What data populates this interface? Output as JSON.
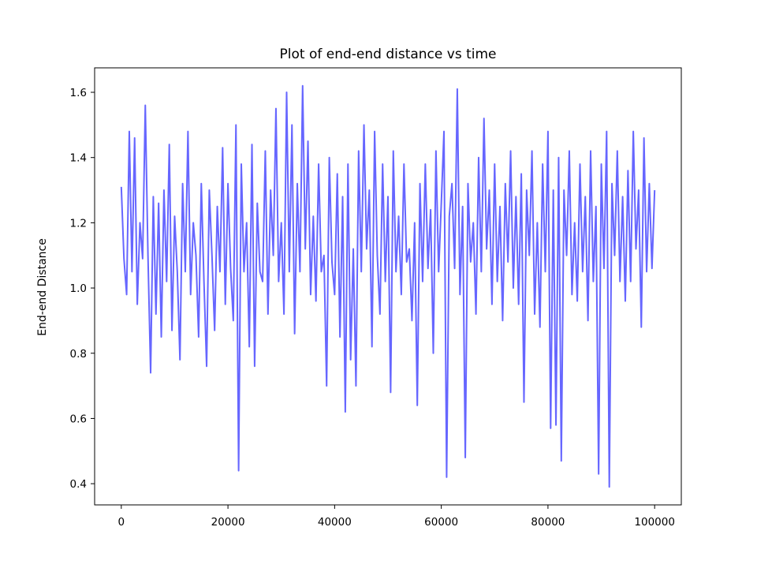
{
  "chart_data": {
    "type": "line",
    "title": "Plot of end-end distance vs time",
    "xlabel": "",
    "ylabel": "End-end Distance",
    "xlim": [
      -5000,
      105000
    ],
    "ylim": [
      0.335,
      1.675
    ],
    "xticks": [
      0,
      20000,
      40000,
      60000,
      80000,
      100000
    ],
    "xtick_labels": [
      "0",
      "20000",
      "40000",
      "60000",
      "80000",
      "100000"
    ],
    "yticks": [
      0.4,
      0.6,
      0.8,
      1.0,
      1.2,
      1.4,
      1.6
    ],
    "ytick_labels": [
      "0.4",
      "0.6",
      "0.8",
      "1.0",
      "1.2",
      "1.4",
      "1.6"
    ],
    "grid": false,
    "series": [
      {
        "color": "#6666ff",
        "x": [
          0,
          500,
          1000,
          1500,
          2000,
          2500,
          3000,
          3500,
          4000,
          4500,
          5000,
          5500,
          6000,
          6500,
          7000,
          7500,
          8000,
          8500,
          9000,
          9500,
          10000,
          10500,
          11000,
          11500,
          12000,
          12500,
          13000,
          13500,
          14000,
          14500,
          15000,
          15500,
          16000,
          16500,
          17000,
          17500,
          18000,
          18500,
          19000,
          19500,
          20000,
          20500,
          21000,
          21500,
          22000,
          22500,
          23000,
          23500,
          24000,
          24500,
          25000,
          25500,
          26000,
          26500,
          27000,
          27500,
          28000,
          28500,
          29000,
          29500,
          30000,
          30500,
          31000,
          31500,
          32000,
          32500,
          33000,
          33500,
          34000,
          34500,
          35000,
          35500,
          36000,
          36500,
          37000,
          37500,
          38000,
          38500,
          39000,
          39500,
          40000,
          40500,
          41000,
          41500,
          42000,
          42500,
          43000,
          43500,
          44000,
          44500,
          45000,
          45500,
          46000,
          46500,
          47000,
          47500,
          48000,
          48500,
          49000,
          49500,
          50000,
          50500,
          51000,
          51500,
          52000,
          52500,
          53000,
          53500,
          54000,
          54500,
          55000,
          55500,
          56000,
          56500,
          57000,
          57500,
          58000,
          58500,
          59000,
          59500,
          60000,
          60500,
          61000,
          61500,
          62000,
          62500,
          63000,
          63500,
          64000,
          64500,
          65000,
          65500,
          66000,
          66500,
          67000,
          67500,
          68000,
          68500,
          69000,
          69500,
          70000,
          70500,
          71000,
          71500,
          72000,
          72500,
          73000,
          73500,
          74000,
          74500,
          75000,
          75500,
          76000,
          76500,
          77000,
          77500,
          78000,
          78500,
          79000,
          79500,
          80000,
          80500,
          81000,
          81500,
          82000,
          82500,
          83000,
          83500,
          84000,
          84500,
          85000,
          85500,
          86000,
          86500,
          87000,
          87500,
          88000,
          88500,
          89000,
          89500,
          90000,
          90500,
          91000,
          91500,
          92000,
          92500,
          93000,
          93500,
          94000,
          94500,
          95000,
          95500,
          96000,
          96500,
          97000,
          97500,
          98000,
          98500,
          99000,
          99500,
          100000
        ],
        "y": [
          1.31,
          1.09,
          0.98,
          1.48,
          1.05,
          1.46,
          0.95,
          1.2,
          1.09,
          1.56,
          1.1,
          0.74,
          1.28,
          0.92,
          1.26,
          0.85,
          1.3,
          1.02,
          1.44,
          0.87,
          1.22,
          1.05,
          0.78,
          1.32,
          1.05,
          1.48,
          0.98,
          1.2,
          1.1,
          0.85,
          1.32,
          1.02,
          0.76,
          1.3,
          1.1,
          0.87,
          1.25,
          1.05,
          1.43,
          0.95,
          1.32,
          1.06,
          0.9,
          1.5,
          0.44,
          1.38,
          1.05,
          1.2,
          0.82,
          1.44,
          0.76,
          1.26,
          1.05,
          1.02,
          1.42,
          0.92,
          1.3,
          1.1,
          1.55,
          1.02,
          1.2,
          0.92,
          1.6,
          1.05,
          1.5,
          0.86,
          1.32,
          1.05,
          1.62,
          1.12,
          1.45,
          0.98,
          1.22,
          0.96,
          1.38,
          1.05,
          1.1,
          0.7,
          1.4,
          1.08,
          0.98,
          1.35,
          0.85,
          1.28,
          0.62,
          1.38,
          0.78,
          1.12,
          0.7,
          1.42,
          1.05,
          1.5,
          1.12,
          1.3,
          0.82,
          1.48,
          1.1,
          0.92,
          1.38,
          1.02,
          1.28,
          0.68,
          1.42,
          1.05,
          1.22,
          0.98,
          1.38,
          1.08,
          1.12,
          0.9,
          1.2,
          0.64,
          1.32,
          1.02,
          1.38,
          1.06,
          1.24,
          0.8,
          1.42,
          1.05,
          1.26,
          1.48,
          0.42,
          1.22,
          1.32,
          1.06,
          1.61,
          0.98,
          1.25,
          0.48,
          1.32,
          1.08,
          1.2,
          0.92,
          1.4,
          1.05,
          1.52,
          1.12,
          1.3,
          0.95,
          1.38,
          1.02,
          1.25,
          0.9,
          1.32,
          1.08,
          1.42,
          1.0,
          1.28,
          0.95,
          1.35,
          0.65,
          1.3,
          1.1,
          1.42,
          0.92,
          1.2,
          0.88,
          1.38,
          1.05,
          1.48,
          0.57,
          1.3,
          0.58,
          1.4,
          0.47,
          1.3,
          1.1,
          1.42,
          0.98,
          1.2,
          0.96,
          1.38,
          1.05,
          1.28,
          0.9,
          1.42,
          1.02,
          1.25,
          0.43,
          1.38,
          1.06,
          1.48,
          0.39,
          1.32,
          1.1,
          1.42,
          1.02,
          1.28,
          0.96,
          1.36,
          1.02,
          1.48,
          1.12,
          1.3,
          0.88,
          1.46,
          1.05,
          1.32,
          1.06,
          1.3
        ]
      }
    ]
  }
}
